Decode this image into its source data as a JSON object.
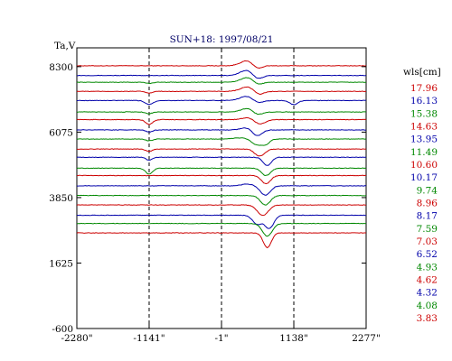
{
  "chart_data": {
    "type": "line",
    "title": "SUN+18: 1997/08/21",
    "ylabel": "Ta,V",
    "legend_title": "wls[cm]",
    "legend_position": "right",
    "grid": false,
    "xlim": [
      -2280,
      2277
    ],
    "ylim": [
      -600,
      8940
    ],
    "x_ticks": [
      -2280,
      -1141,
      -1,
      1138,
      2277
    ],
    "x_tick_labels": [
      "-2280\"",
      "-1141\"",
      "-1\"",
      "1138\"",
      "2277\""
    ],
    "y_ticks": [
      8300,
      6075,
      3850,
      1625,
      -600
    ],
    "y_tick_labels": [
      "8300",
      "6075",
      "3850",
      "1625",
      "-600"
    ],
    "markers": [
      -1141,
      -1,
      1138
    ],
    "colors": {
      "red": "#cc0000",
      "blue": "#0000aa",
      "green": "#008800",
      "text": "#000000"
    },
    "series": [
      {
        "name": "17.96",
        "color": "red",
        "baseline": 8330,
        "features": [
          [
            400,
            150,
            170
          ],
          [
            560,
            100,
            -120
          ]
        ]
      },
      {
        "name": "16.13",
        "color": "blue",
        "baseline": 8000,
        "features": [
          [
            400,
            150,
            180
          ],
          [
            560,
            110,
            -140
          ]
        ]
      },
      {
        "name": "15.38",
        "color": "green",
        "baseline": 7770,
        "features": [
          [
            -1141,
            70,
            -40
          ],
          [
            420,
            160,
            170
          ],
          [
            560,
            110,
            -120
          ]
        ]
      },
      {
        "name": "14.63",
        "color": "red",
        "baseline": 7460,
        "features": [
          [
            -1141,
            70,
            -60
          ],
          [
            420,
            160,
            160
          ],
          [
            580,
            110,
            -140
          ]
        ]
      },
      {
        "name": "13.95",
        "color": "blue",
        "baseline": 7150,
        "features": [
          [
            -1141,
            90,
            -130
          ],
          [
            420,
            170,
            160
          ],
          [
            560,
            120,
            -130
          ],
          [
            1138,
            90,
            -140
          ]
        ]
      },
      {
        "name": "11.49",
        "color": "green",
        "baseline": 6760,
        "features": [
          [
            -1141,
            70,
            -60
          ],
          [
            420,
            150,
            130
          ],
          [
            560,
            110,
            -120
          ]
        ]
      },
      {
        "name": "10.60",
        "color": "red",
        "baseline": 6500,
        "features": [
          [
            -1141,
            80,
            -160
          ],
          [
            430,
            140,
            70
          ],
          [
            600,
            120,
            -160
          ]
        ]
      },
      {
        "name": "10.17",
        "color": "blue",
        "baseline": 6150,
        "features": [
          [
            -1141,
            70,
            -70
          ],
          [
            400,
            130,
            80
          ],
          [
            560,
            110,
            -210
          ]
        ]
      },
      {
        "name": "9.74",
        "color": "green",
        "baseline": 5840,
        "features": [
          [
            -1141,
            70,
            -60
          ],
          [
            300,
            180,
            40
          ],
          [
            560,
            120,
            -200
          ],
          [
            700,
            80,
            -150
          ]
        ]
      },
      {
        "name": "8.96",
        "color": "red",
        "baseline": 5500,
        "features": [
          [
            -1141,
            70,
            -80
          ],
          [
            600,
            110,
            -240
          ]
        ]
      },
      {
        "name": "8.17",
        "color": "blue",
        "baseline": 5220,
        "features": [
          [
            -1141,
            70,
            -100
          ],
          [
            720,
            90,
            -280
          ]
        ]
      },
      {
        "name": "7.59",
        "color": "green",
        "baseline": 4850,
        "features": [
          [
            -1141,
            80,
            -200
          ],
          [
            700,
            100,
            -250
          ]
        ]
      },
      {
        "name": "7.03",
        "color": "red",
        "baseline": 4600,
        "features": [
          [
            700,
            100,
            -280
          ]
        ]
      },
      {
        "name": "6.52",
        "color": "blue",
        "baseline": 4250,
        "features": [
          [
            400,
            120,
            60
          ],
          [
            690,
            110,
            -320
          ]
        ]
      },
      {
        "name": "4.93",
        "color": "green",
        "baseline": 3920,
        "features": [
          [
            690,
            110,
            -320
          ]
        ]
      },
      {
        "name": "4.62",
        "color": "red",
        "baseline": 3600,
        "features": [
          [
            650,
            120,
            -360
          ]
        ]
      },
      {
        "name": "4.32",
        "color": "blue",
        "baseline": 3250,
        "features": [
          [
            560,
            100,
            -300
          ],
          [
            750,
            100,
            -450
          ]
        ]
      },
      {
        "name": "4.08",
        "color": "green",
        "baseline": 2970,
        "features": [
          [
            720,
            110,
            -430
          ]
        ]
      },
      {
        "name": "3.83",
        "color": "red",
        "baseline": 2650,
        "features": [
          [
            720,
            90,
            -500
          ]
        ]
      }
    ]
  }
}
